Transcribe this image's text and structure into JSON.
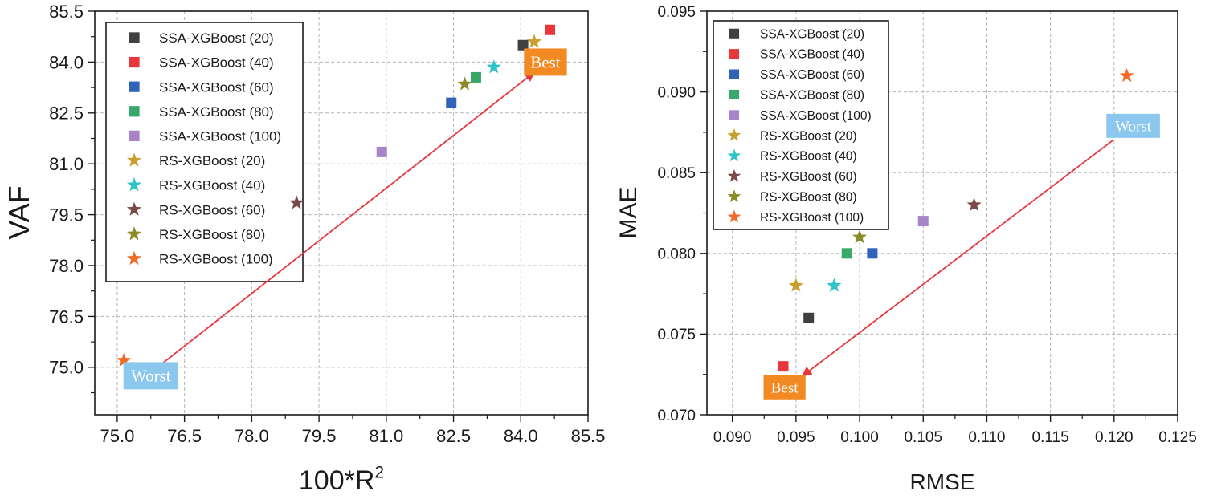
{
  "chart_data": [
    {
      "type": "scatter",
      "title": "",
      "xlabel": "100*R",
      "xlabel_superscript": "2",
      "ylabel": "VAF",
      "xlim": [
        74.5,
        85.5
      ],
      "ylim": [
        73.6,
        85.5
      ],
      "xticks": [
        "75.0",
        "76.5",
        "78.0",
        "79.5",
        "81.0",
        "82.5",
        "84.0",
        "85.5"
      ],
      "xtick_values": [
        75.0,
        76.5,
        78.0,
        79.5,
        81.0,
        82.5,
        84.0,
        85.5
      ],
      "yticks": [
        "75.0",
        "76.5",
        "78.0",
        "79.5",
        "81.0",
        "82.5",
        "84.0",
        "85.5"
      ],
      "ytick_values": [
        75.0,
        76.5,
        78.0,
        79.5,
        81.0,
        82.5,
        84.0,
        85.5
      ],
      "grid": true,
      "legend_position": "top-left",
      "series": [
        {
          "name": "SSA-XGBoost (20)",
          "marker": "square",
          "color": "#404040",
          "x": 84.05,
          "y": 84.5
        },
        {
          "name": "SSA-XGBoost (40)",
          "marker": "square",
          "color": "#e8373a",
          "x": 84.65,
          "y": 84.95
        },
        {
          "name": "SSA-XGBoost (60)",
          "marker": "square",
          "color": "#2f63b8",
          "x": 82.45,
          "y": 82.8
        },
        {
          "name": "SSA-XGBoost (80)",
          "marker": "square",
          "color": "#37a86a",
          "x": 83.0,
          "y": 83.55
        },
        {
          "name": "SSA-XGBoost (100)",
          "marker": "square",
          "color": "#a783c9",
          "x": 80.9,
          "y": 81.35
        },
        {
          "name": "RS-XGBoost (20)",
          "marker": "star",
          "color": "#c9a030",
          "x": 84.3,
          "y": 84.6
        },
        {
          "name": "RS-XGBoost (40)",
          "marker": "star",
          "color": "#2fc4c9",
          "x": 83.4,
          "y": 83.85
        },
        {
          "name": "RS-XGBoost (60)",
          "marker": "star",
          "color": "#7a4a4a",
          "x": 79.0,
          "y": 79.85
        },
        {
          "name": "RS-XGBoost (80)",
          "marker": "star",
          "color": "#8b8b2a",
          "x": 82.75,
          "y": 83.35
        },
        {
          "name": "RS-XGBoost (100)",
          "marker": "star",
          "color": "#f26a28",
          "x": 75.15,
          "y": 75.2
        }
      ],
      "annotations": [
        {
          "text": "Best",
          "x": 84.55,
          "y": 84.0,
          "color": "#f28a24"
        },
        {
          "text": "Worst",
          "x": 75.75,
          "y": 74.75,
          "color": "#8cc8ee"
        }
      ],
      "arrow": {
        "from": [
          75.8,
          74.9
        ],
        "to": [
          84.3,
          83.7
        ],
        "color": "#e8373a"
      }
    },
    {
      "type": "scatter",
      "title": "",
      "xlabel": "RMSE",
      "ylabel": "MAE",
      "xlim": [
        0.088,
        0.125
      ],
      "ylim": [
        0.07,
        0.095
      ],
      "xticks": [
        "0.090",
        "0.095",
        "0.100",
        "0.105",
        "0.110",
        "0.115",
        "0.120",
        "0.125"
      ],
      "xtick_values": [
        0.09,
        0.095,
        0.1,
        0.105,
        0.11,
        0.115,
        0.12,
        0.125
      ],
      "yticks": [
        "0.070",
        "0.075",
        "0.080",
        "0.085",
        "0.090",
        "0.095"
      ],
      "ytick_values": [
        0.07,
        0.075,
        0.08,
        0.085,
        0.09,
        0.095
      ],
      "grid": true,
      "legend_position": "top-left",
      "series": [
        {
          "name": "SSA-XGBoost (20)",
          "marker": "square",
          "color": "#404040",
          "x": 0.096,
          "y": 0.076
        },
        {
          "name": "SSA-XGBoost (40)",
          "marker": "square",
          "color": "#e8373a",
          "x": 0.094,
          "y": 0.073
        },
        {
          "name": "SSA-XGBoost (60)",
          "marker": "square",
          "color": "#2f63b8",
          "x": 0.101,
          "y": 0.08
        },
        {
          "name": "SSA-XGBoost (80)",
          "marker": "square",
          "color": "#37a86a",
          "x": 0.099,
          "y": 0.08
        },
        {
          "name": "SSA-XGBoost (100)",
          "marker": "square",
          "color": "#a783c9",
          "x": 0.105,
          "y": 0.082
        },
        {
          "name": "RS-XGBoost (20)",
          "marker": "star",
          "color": "#c9a030",
          "x": 0.095,
          "y": 0.078
        },
        {
          "name": "RS-XGBoost (40)",
          "marker": "star",
          "color": "#2fc4c9",
          "x": 0.098,
          "y": 0.078
        },
        {
          "name": "RS-XGBoost (60)",
          "marker": "star",
          "color": "#7a4a4a",
          "x": 0.109,
          "y": 0.083
        },
        {
          "name": "RS-XGBoost (80)",
          "marker": "star",
          "color": "#8b8b2a",
          "x": 0.1,
          "y": 0.081
        },
        {
          "name": "RS-XGBoost (100)",
          "marker": "star",
          "color": "#f26a28",
          "x": 0.121,
          "y": 0.091
        }
      ],
      "annotations": [
        {
          "text": "Worst",
          "x": 0.1215,
          "y": 0.0879,
          "color": "#8cc8ee"
        },
        {
          "text": "Best",
          "x": 0.0941,
          "y": 0.0717,
          "color": "#f28a24"
        }
      ],
      "arrow": {
        "from": [
          0.1199,
          0.087
        ],
        "to": [
          0.0955,
          0.0724
        ],
        "color": "#e8373a"
      }
    }
  ]
}
